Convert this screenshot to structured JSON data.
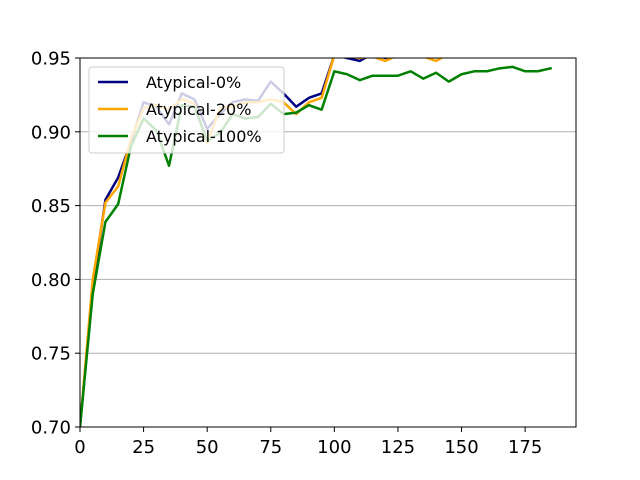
{
  "chart_data": {
    "type": "line",
    "title": "",
    "xlabel": "",
    "ylabel": "",
    "xlim": [
      0,
      195
    ],
    "ylim": [
      0.7,
      0.95
    ],
    "x_ticks": [
      0,
      25,
      50,
      75,
      100,
      125,
      150,
      175
    ],
    "y_ticks": [
      0.7,
      0.75,
      0.8,
      0.85,
      0.9,
      0.95
    ],
    "y_tick_labels": [
      "0.70",
      "0.75",
      "0.80",
      "0.85",
      "0.90",
      "0.95"
    ],
    "x_tick_labels": [
      "0",
      "25",
      "50",
      "75",
      "100",
      "125",
      "150",
      "175"
    ],
    "grid": "horizontal",
    "legend_position": "upper-left",
    "series": [
      {
        "name": "Atypical-0%",
        "color": "#000080",
        "x": [
          0,
          5,
          10,
          15,
          20,
          25,
          30,
          35,
          40,
          45,
          50,
          55,
          60,
          65,
          70,
          75,
          80,
          85,
          90,
          95,
          100,
          105,
          110,
          115,
          120,
          125,
          130,
          135,
          140,
          145,
          150,
          155,
          160,
          165,
          170,
          175,
          180,
          185
        ],
        "y": [
          0.7,
          0.795,
          0.854,
          0.869,
          0.893,
          0.92,
          0.917,
          0.905,
          0.926,
          0.922,
          0.902,
          0.912,
          0.92,
          0.922,
          0.921,
          0.934,
          0.926,
          0.917,
          0.923,
          0.926,
          0.952,
          0.95,
          0.948,
          0.953,
          0.95,
          0.952,
          0.953,
          0.952,
          0.951,
          0.952,
          0.953,
          0.953,
          0.954,
          0.954,
          0.954,
          0.954,
          0.954,
          0.954
        ]
      },
      {
        "name": "Atypical-20%",
        "color": "#ffa500",
        "x": [
          0,
          5,
          10,
          15,
          20,
          25,
          30,
          35,
          40,
          45,
          50,
          55,
          60,
          65,
          70,
          75,
          80,
          85,
          90,
          95,
          100,
          105,
          110,
          115,
          120,
          125,
          130,
          135,
          140,
          145,
          150,
          155,
          160,
          165,
          170,
          175,
          180,
          185
        ],
        "y": [
          0.7,
          0.8,
          0.852,
          0.863,
          0.895,
          0.916,
          0.918,
          0.915,
          0.922,
          0.919,
          0.892,
          0.916,
          0.917,
          0.92,
          0.92,
          0.922,
          0.92,
          0.912,
          0.92,
          0.923,
          0.952,
          0.951,
          0.95,
          0.951,
          0.948,
          0.952,
          0.952,
          0.951,
          0.948,
          0.953,
          0.953,
          0.953,
          0.954,
          0.954,
          0.954,
          0.954,
          0.954,
          0.954
        ]
      },
      {
        "name": "Atypical-100%",
        "color": "#008000",
        "x": [
          0,
          5,
          10,
          15,
          20,
          25,
          30,
          35,
          40,
          45,
          50,
          55,
          60,
          65,
          70,
          75,
          80,
          85,
          90,
          95,
          100,
          105,
          110,
          115,
          120,
          125,
          130,
          135,
          140,
          145,
          150,
          155,
          160,
          165,
          170,
          175,
          180,
          185
        ],
        "y": [
          0.7,
          0.79,
          0.839,
          0.851,
          0.89,
          0.909,
          0.901,
          0.877,
          0.918,
          0.917,
          0.894,
          0.899,
          0.912,
          0.909,
          0.91,
          0.919,
          0.912,
          0.913,
          0.918,
          0.915,
          0.941,
          0.939,
          0.935,
          0.938,
          0.938,
          0.938,
          0.941,
          0.936,
          0.94,
          0.934,
          0.939,
          0.941,
          0.941,
          0.943,
          0.944,
          0.941,
          0.941,
          0.943
        ]
      }
    ]
  }
}
